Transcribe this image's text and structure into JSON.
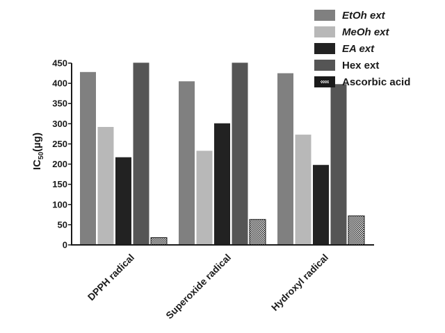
{
  "chart_data": {
    "type": "bar",
    "title": "",
    "xlabel": "",
    "ylabel": "IC50(µg)",
    "ylabel_main": "IC",
    "ylabel_sub": "50",
    "ylabel_unit": "(µg)",
    "ylim": [
      0,
      450
    ],
    "yticks": [
      0,
      50,
      100,
      150,
      200,
      250,
      300,
      350,
      400,
      450
    ],
    "categories": [
      "DPPH radical",
      "Superoxide radical",
      "Hydroxyl radical"
    ],
    "legend_position": "top-right",
    "grid": false,
    "series": [
      {
        "name": "EtOh ext",
        "italic": true,
        "color": "#808080",
        "values": [
          428,
          405,
          425
        ]
      },
      {
        "name": "MeOh ext",
        "italic": true,
        "color": "#b8b8b8",
        "values": [
          292,
          233,
          273
        ]
      },
      {
        "name": "EA ext",
        "italic": true,
        "color": "#222222",
        "values": [
          217,
          301,
          198
        ]
      },
      {
        "name": "Hex ext",
        "italic": false,
        "color": "#555555",
        "values": [
          451,
          451,
          398
        ]
      },
      {
        "name": "Ascorbic acid",
        "italic": false,
        "color": "#1a1a1a",
        "pattern": "hatched",
        "values": [
          18,
          63,
          72
        ]
      }
    ]
  }
}
